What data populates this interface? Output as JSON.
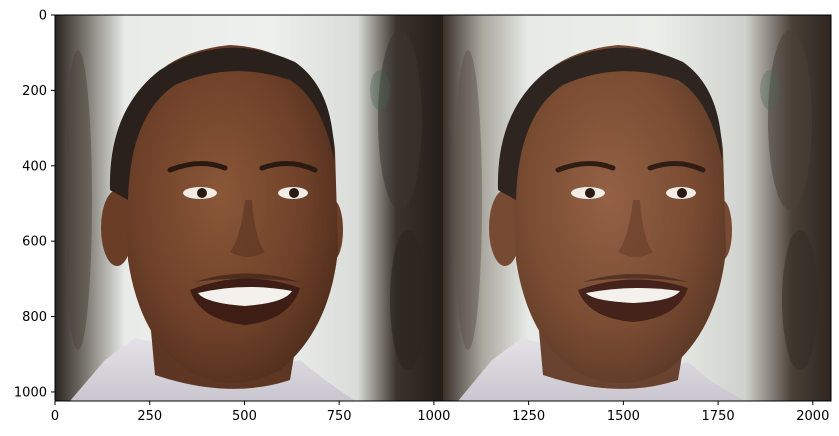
{
  "image": {
    "description_panels": [
      {
        "name": "left-portrait-panel"
      },
      {
        "name": "right-portrait-panel"
      }
    ]
  },
  "axes": {
    "x_ticks": [
      "0",
      "250",
      "500",
      "750",
      "1000",
      "1250",
      "1500",
      "1750",
      "2000"
    ],
    "y_ticks": [
      "0",
      "200",
      "400",
      "600",
      "800",
      "1000"
    ],
    "xlim": [
      0,
      2048
    ],
    "ylim": [
      1024,
      0
    ]
  },
  "colors": {
    "background_light": "#e9ebe8",
    "background_dark": "#2a231d",
    "skin_left": "#7a4a30",
    "skin_right": "#86573b",
    "shirt": "#d8d6dc",
    "hair": "#2a211c"
  }
}
